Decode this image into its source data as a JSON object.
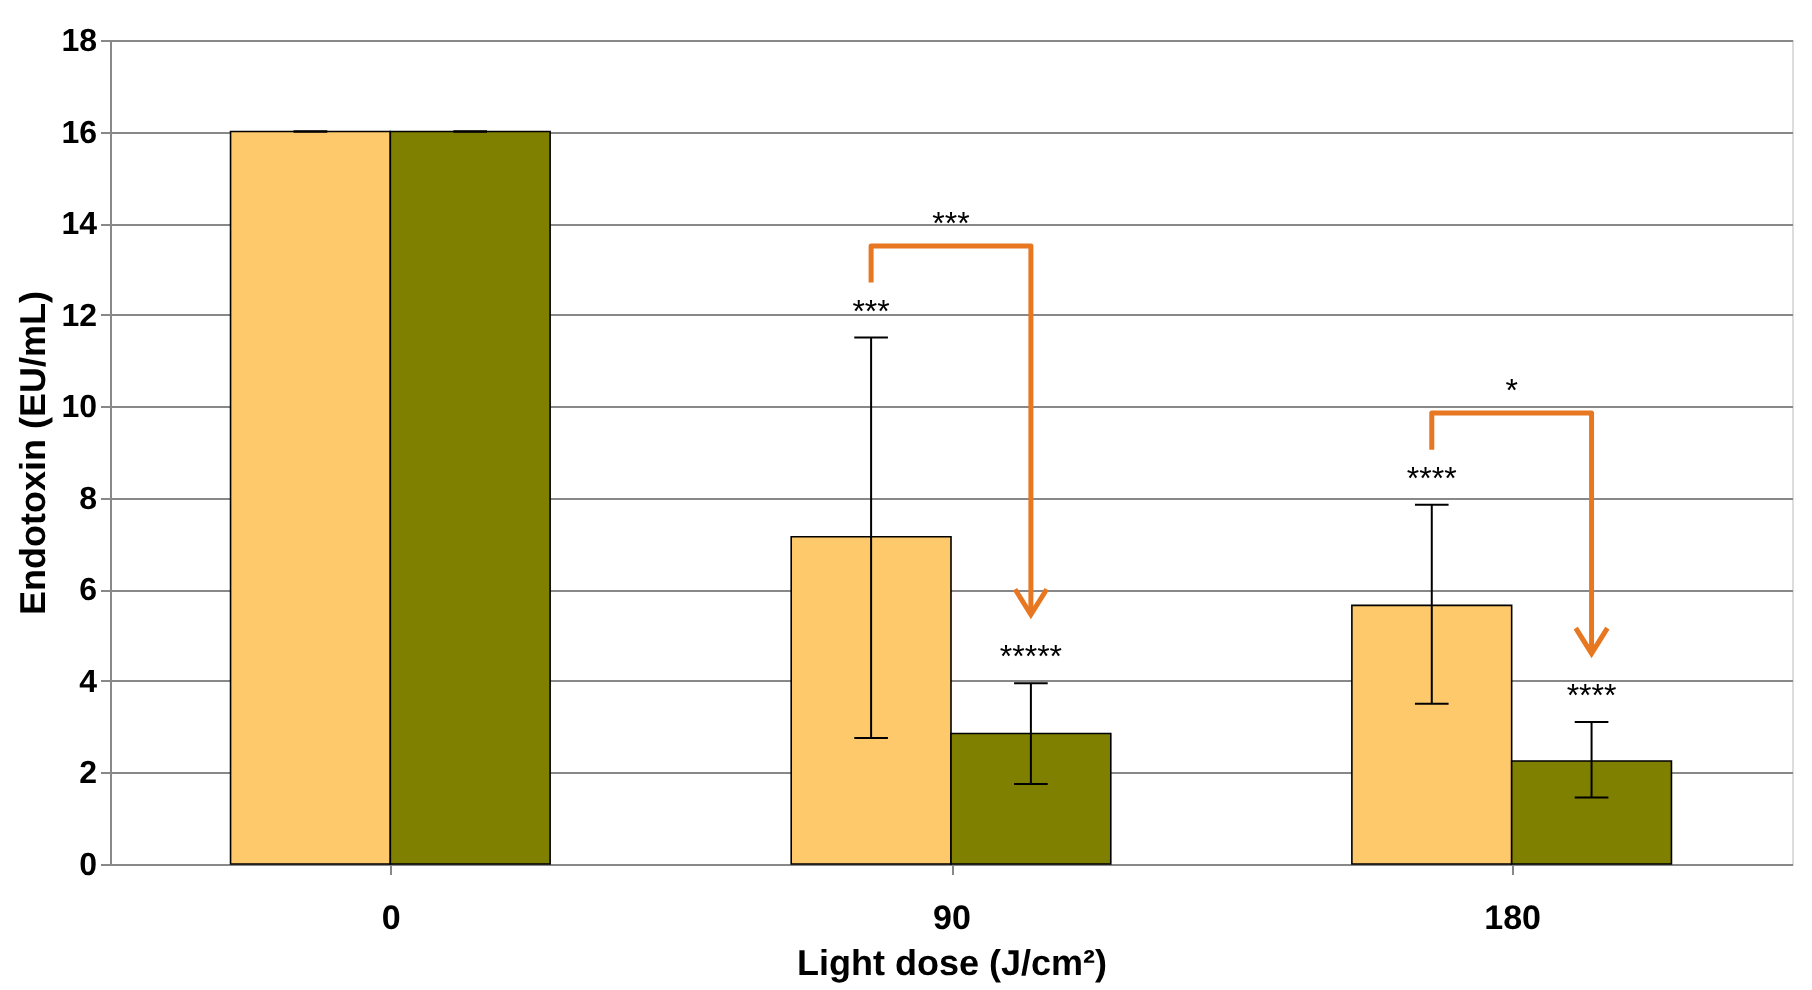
{
  "chart_data": {
    "type": "bar",
    "xlabel": "Light dose (J/cm²)",
    "ylabel": "Endotoxin (EU/mL)",
    "categories": [
      "0",
      "90",
      "180"
    ],
    "series": [
      {
        "color": "#fec96a",
        "values": [
          16,
          7.15,
          5.65
        ],
        "errors": [
          0,
          [
            2.75,
            11.5
          ],
          [
            3.5,
            7.85
          ]
        ]
      },
      {
        "color": "#7f7f00",
        "values": [
          16,
          2.85,
          2.25
        ],
        "errors": [
          0,
          [
            1.75,
            3.95
          ],
          [
            1.45,
            3.1
          ]
        ]
      }
    ],
    "ylim": [
      0,
      18
    ],
    "yticks": [
      0,
      2,
      4,
      6,
      8,
      10,
      12,
      14,
      16,
      18
    ],
    "grid": "y",
    "annotations": [
      "***",
      "*****",
      "****",
      "****",
      "***",
      "*"
    ]
  }
}
